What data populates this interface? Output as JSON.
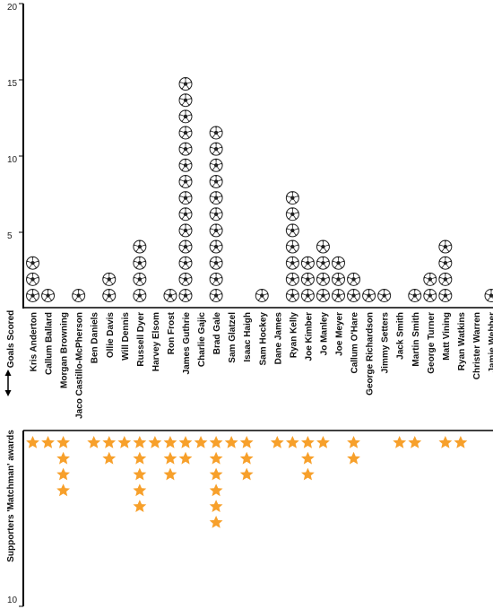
{
  "chart_data": {
    "type": "bar",
    "players": [
      {
        "name": "Kris Anderton",
        "goals": 3,
        "awards": 1
      },
      {
        "name": "Callum Ballard",
        "goals": 1,
        "awards": 1
      },
      {
        "name": "Morgan Browning",
        "goals": 0,
        "awards": 4
      },
      {
        "name": "Jaco Castillo-McPherson",
        "goals": 1,
        "awards": 0
      },
      {
        "name": "Ben Daniels",
        "goals": 0,
        "awards": 1
      },
      {
        "name": "Ollie Davis",
        "goals": 2,
        "awards": 2
      },
      {
        "name": "Will Dennis",
        "goals": 0,
        "awards": 1
      },
      {
        "name": "Russell Dyer",
        "goals": 4,
        "awards": 5
      },
      {
        "name": "Harvey Elsom",
        "goals": 0,
        "awards": 1
      },
      {
        "name": "Ron Frost",
        "goals": 1,
        "awards": 3
      },
      {
        "name": "James Guthrie",
        "goals": 14,
        "awards": 2
      },
      {
        "name": "Charlie Gajic",
        "goals": 0,
        "awards": 1
      },
      {
        "name": "Brad Gale",
        "goals": 11,
        "awards": 6
      },
      {
        "name": "Sam Glatzel",
        "goals": 0,
        "awards": 1
      },
      {
        "name": "Isaac Haigh",
        "goals": 0,
        "awards": 3
      },
      {
        "name": "Sam Hockey",
        "goals": 1,
        "awards": 0
      },
      {
        "name": "Dane James",
        "goals": 0,
        "awards": 1
      },
      {
        "name": "Ryan Kelly",
        "goals": 7,
        "awards": 1
      },
      {
        "name": "Joe Kimber",
        "goals": 3,
        "awards": 3
      },
      {
        "name": "Jo Manley",
        "goals": 4,
        "awards": 1
      },
      {
        "name": "Joe Meyer",
        "goals": 3,
        "awards": 0
      },
      {
        "name": "Callum O'Hare",
        "goals": 2,
        "awards": 2
      },
      {
        "name": "George Richardson",
        "goals": 1,
        "awards": 0
      },
      {
        "name": "Jimmy Setters",
        "goals": 1,
        "awards": 0
      },
      {
        "name": "Jack Smith",
        "goals": 0,
        "awards": 1
      },
      {
        "name": "Martin Smith",
        "goals": 1,
        "awards": 1
      },
      {
        "name": "George Turner",
        "goals": 2,
        "awards": 0
      },
      {
        "name": "Matt Vining",
        "goals": 4,
        "awards": 1
      },
      {
        "name": "Ryan Watkins",
        "goals": 0,
        "awards": 1
      },
      {
        "name": "Christer Warren",
        "goals": 0,
        "awards": 0
      },
      {
        "name": "Jamie Webber",
        "goals": 1,
        "awards": 0
      }
    ],
    "goals_axis": {
      "label": "Goals Scored",
      "ylim": [
        0,
        20
      ],
      "ticks": [
        5,
        10,
        15,
        20
      ]
    },
    "awards_axis": {
      "label": "Supporters 'Matchman' awards",
      "ylim": [
        0,
        10
      ],
      "ticks": [
        10
      ]
    },
    "icons": {
      "goal": "football-icon",
      "award": "star-icon"
    },
    "colors": {
      "star": "#f7a02b",
      "ball_dark": "#222222",
      "ball_light": "#ffffff",
      "axis": "#000000"
    }
  }
}
